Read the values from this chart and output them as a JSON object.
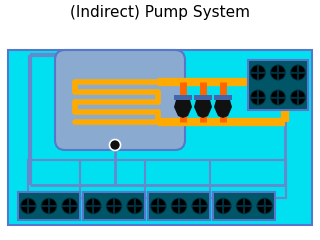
{
  "title": "(Indirect) Pump System",
  "bg_color": "#00E0F0",
  "border_color": "#5577CC",
  "tank_color": "#8AAAD0",
  "coil_color": "#FFAA00",
  "pipe_orange": "#FF6600",
  "pipe_yellow": "#FFAA00",
  "pump_body": "#111111",
  "pump_base_color": "#4466AA",
  "fan_unit_color": "#005566",
  "fan_blade_color": "#000000",
  "valve_color": "#111111",
  "pipe_blue": "#6688CC",
  "white": "#FFFFFF",
  "title_fontsize": 11,
  "figw": 3.2,
  "figh": 2.4,
  "dpi": 100
}
